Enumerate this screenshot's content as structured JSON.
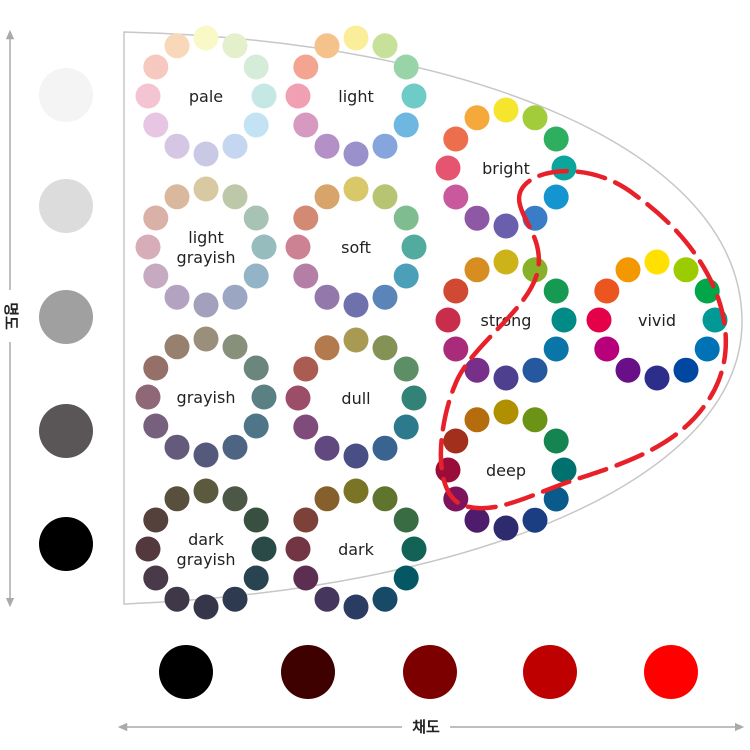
{
  "axes": {
    "vertical_label": "명도",
    "horizontal_label": "채도"
  },
  "lightness_scale": [
    "#f4f4f4",
    "#dcdcdc",
    "#a0a0a0",
    "#5a5556",
    "#000000"
  ],
  "chroma_scale": [
    "#000000",
    "#3f0000",
    "#7d0000",
    "#be0000",
    "#ff0000"
  ],
  "tones": [
    {
      "id": "pale",
      "lines": [
        "pale"
      ],
      "colors": [
        "#f9f9c7",
        "#e4efcb",
        "#d5ecd8",
        "#c6e8e4",
        "#c3e3f4",
        "#c4d6f0",
        "#c9c9e6",
        "#d5c6e4",
        "#e6c6e2",
        "#f5c4d2",
        "#f6c9c0",
        "#f9d8b9"
      ]
    },
    {
      "id": "light",
      "lines": [
        "light"
      ],
      "colors": [
        "#fbee9a",
        "#c8e19a",
        "#98d4a7",
        "#6ecbc6",
        "#6db7e0",
        "#86a5dc",
        "#9990cc",
        "#b391c7",
        "#d699c0",
        "#f0a0b2",
        "#f3a592",
        "#f6c28c"
      ]
    },
    {
      "id": "bright",
      "lines": [
        "bright"
      ],
      "colors": [
        "#f6e52d",
        "#a2cc3a",
        "#2eae5f",
        "#0ba59c",
        "#1595cf",
        "#3a7cc6",
        "#6a5fad",
        "#8f58a4",
        "#c8599c",
        "#e55570",
        "#ec6e4d",
        "#f4a93a"
      ]
    },
    {
      "id": "light-grayish",
      "lines": [
        "light",
        "grayish"
      ],
      "colors": [
        "#d9c9a3",
        "#bdc8a9",
        "#a8c2b3",
        "#97bcbd",
        "#92b4c6",
        "#9aa6c2",
        "#a3a0bd",
        "#b3a3c0",
        "#c5aac1",
        "#d6adb9",
        "#d9b1a6",
        "#d9b89e"
      ]
    },
    {
      "id": "soft",
      "lines": [
        "soft"
      ],
      "colors": [
        "#d9c86a",
        "#b7c572",
        "#7fbd91",
        "#52ab9f",
        "#4c9fb9",
        "#5b85b9",
        "#6f71ac",
        "#9278ab",
        "#b57ea6",
        "#cd8294",
        "#d38a72",
        "#d7a56c"
      ]
    },
    {
      "id": "strong",
      "lines": [
        "strong"
      ],
      "colors": [
        "#cdb319",
        "#86b128",
        "#169a52",
        "#018b87",
        "#0a75a8",
        "#25589f",
        "#4f3f8f",
        "#782f8a",
        "#a92b7a",
        "#c82d4c",
        "#d04a33",
        "#d88d21"
      ]
    },
    {
      "id": "vivid",
      "lines": [
        "vivid"
      ],
      "colors": [
        "#ffe000",
        "#9ccc00",
        "#00a648",
        "#009995",
        "#0073b7",
        "#0047a1",
        "#2d2e8c",
        "#690f87",
        "#b8007a",
        "#e5004a",
        "#ea5520",
        "#f39800"
      ]
    },
    {
      "id": "grayish",
      "lines": [
        "grayish"
      ],
      "colors": [
        "#9a8f7a",
        "#87907a",
        "#6b877d",
        "#5a8084",
        "#4e7688",
        "#4d6483",
        "#555a7c",
        "#635a7c",
        "#77607e",
        "#8f6877",
        "#957067",
        "#98806e"
      ]
    },
    {
      "id": "dull",
      "lines": [
        "dull"
      ],
      "colors": [
        "#a89a52",
        "#849256",
        "#5d8f67",
        "#338277",
        "#2d7a8c",
        "#39648f",
        "#494f85",
        "#614980",
        "#7f4b7b",
        "#9c4e68",
        "#aa5c52",
        "#b37a4e"
      ]
    },
    {
      "id": "deep",
      "lines": [
        "deep"
      ],
      "colors": [
        "#b09000",
        "#6b9316",
        "#168450",
        "#017170",
        "#095b8b",
        "#1b3d82",
        "#2d2a6d",
        "#4e1c6c",
        "#7d135c",
        "#9a0c3a",
        "#a12f1b",
        "#b56c0c"
      ]
    },
    {
      "id": "dark-grayish",
      "lines": [
        "dark",
        "grayish"
      ],
      "colors": [
        "#5b5a3e",
        "#4c5845",
        "#37503f",
        "#2a4a48",
        "#284450",
        "#2d3a4f",
        "#35364a",
        "#3f3848",
        "#4a3a49",
        "#53393e",
        "#54413b",
        "#584f3c"
      ]
    },
    {
      "id": "dark",
      "lines": [
        "dark"
      ],
      "colors": [
        "#7a7426",
        "#5f742d",
        "#3a6c44",
        "#126356",
        "#055863",
        "#174a67",
        "#2a3c61",
        "#45365d",
        "#5c2f52",
        "#733444",
        "#7c4239",
        "#85602c"
      ]
    }
  ]
}
